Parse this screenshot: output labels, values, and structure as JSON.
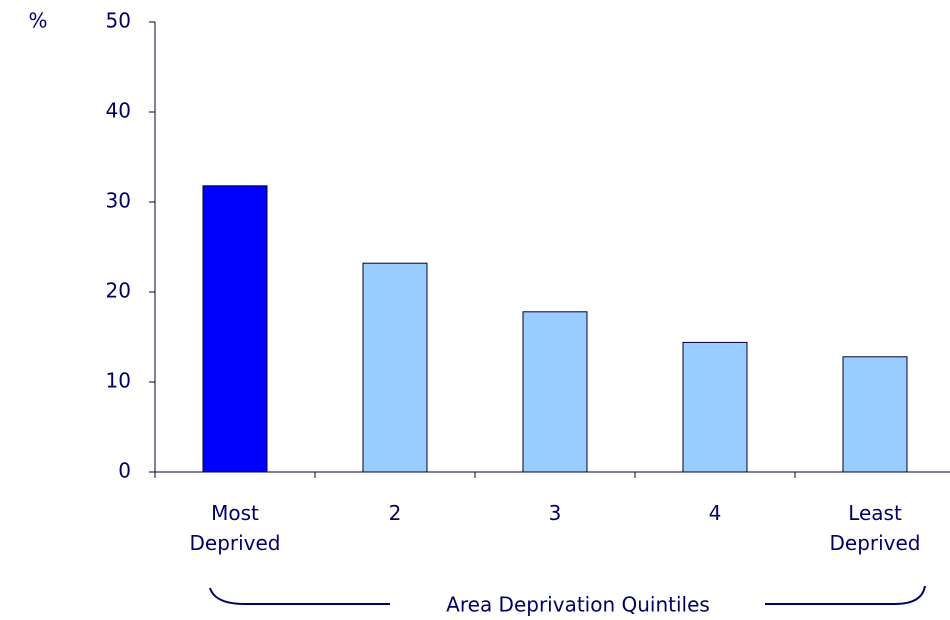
{
  "chart_data": {
    "type": "bar",
    "y_label": "%",
    "x_label": "Area Deprivation Quintiles",
    "categories": [
      "Most Deprived",
      "2",
      "3",
      "4",
      "Least Deprived"
    ],
    "values": [
      31.8,
      23.2,
      17.8,
      14.4,
      12.8
    ],
    "colors": [
      "#0000ff",
      "#99ccff",
      "#99ccff",
      "#99ccff",
      "#99ccff"
    ],
    "ylim": [
      0,
      50
    ],
    "yticks": [
      0,
      10,
      20,
      30,
      40,
      50
    ],
    "grid": false
  }
}
